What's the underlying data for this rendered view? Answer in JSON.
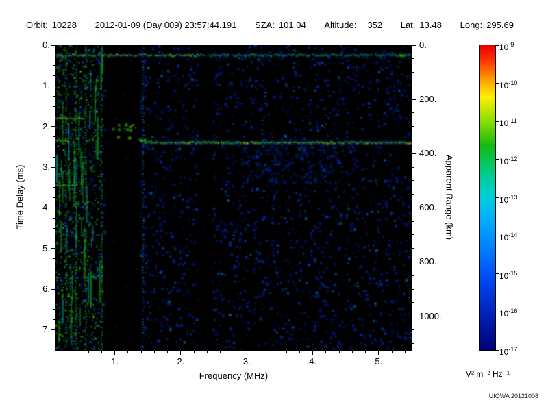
{
  "header": {
    "items": [
      {
        "label": "Orbit:",
        "value": "10228"
      },
      {
        "label": "",
        "value": "2012-01-09 (Day 009) 23:57:44.191"
      },
      {
        "label": "SZA:",
        "value": "101.04"
      },
      {
        "label": "Altitude:",
        "value": "352"
      },
      {
        "label": "Lat:",
        "value": "13.48"
      },
      {
        "label": "Long:",
        "value": "295.69"
      }
    ]
  },
  "credit": "UIOWA 20121008",
  "chart_data": {
    "type": "heatmap",
    "title": "",
    "xlabel": "Frequency (MHz)",
    "ylabel": "Time Delay (ms)",
    "y2label": "Apparent Range (km)",
    "x_range": [
      0.1,
      5.5
    ],
    "y_range": [
      0,
      7.5
    ],
    "y2_range": [
      0,
      1125
    ],
    "x_major_ticks": [
      1,
      2,
      3,
      4,
      5
    ],
    "x_tick_labels": [
      "1.",
      "2.",
      "3.",
      "4.",
      "5."
    ],
    "x_minor_step": 0.2,
    "y_major_ticks": [
      0,
      1,
      2,
      3,
      4,
      5,
      6,
      7
    ],
    "y_tick_labels": [
      "0.",
      "1.",
      "2.",
      "3.",
      "4.",
      "5.",
      "6.",
      "7."
    ],
    "y_minor_step": 0.25,
    "y2_major_ticks": [
      0,
      200,
      400,
      600,
      800,
      1000
    ],
    "y2_tick_labels": [
      "0.",
      "200.",
      "400.",
      "600.",
      "800.",
      "1000."
    ],
    "y2_minor_step": 50,
    "grid": false,
    "colorbar": {
      "unit_label": "V² m⁻² Hz⁻¹",
      "scale": "log",
      "min": 1e-17,
      "max": 1e-09,
      "tick_exponents": [
        -9,
        -10,
        -11,
        -12,
        -13,
        -14,
        -15,
        -16,
        -17
      ],
      "gradient_stops": [
        {
          "pos": 0.0,
          "color": "#e60000"
        },
        {
          "pos": 0.05,
          "color": "#ff3300"
        },
        {
          "pos": 0.11,
          "color": "#ff9900"
        },
        {
          "pos": 0.17,
          "color": "#ffee00"
        },
        {
          "pos": 0.25,
          "color": "#88dd00"
        },
        {
          "pos": 0.33,
          "color": "#11bb11"
        },
        {
          "pos": 0.42,
          "color": "#00cc88"
        },
        {
          "pos": 0.5,
          "color": "#00ccdd"
        },
        {
          "pos": 0.58,
          "color": "#00aaff"
        },
        {
          "pos": 0.68,
          "color": "#0077ff"
        },
        {
          "pos": 0.78,
          "color": "#0044ee"
        },
        {
          "pos": 0.88,
          "color": "#0022bb"
        },
        {
          "pos": 1.0,
          "color": "#000077"
        }
      ]
    },
    "features": [
      {
        "name": "surface-reflection-trace",
        "delay_ms": 0.25,
        "freq_range_mhz": [
          0.1,
          5.5
        ]
      },
      {
        "name": "ionosphere-echo-trace",
        "delay_ms": 2.4,
        "freq_range_mhz": [
          1.35,
          5.5
        ]
      },
      {
        "name": "plasma-oscillation-lines",
        "freqs_mhz": [
          0.26,
          0.41,
          0.56,
          0.8,
          1.43
        ]
      },
      {
        "name": "low-frequency-noise-band",
        "freq_range_mhz": [
          0.1,
          0.82
        ]
      },
      {
        "name": "blackout-bands",
        "freq_ranges_mhz": [
          [
            0.88,
            1.38
          ],
          [
            2.28,
            2.48
          ]
        ]
      },
      {
        "name": "resonance-cluster",
        "freq_range_mhz": [
          0.92,
          1.32
        ],
        "delay_range_ms": [
          1.95,
          2.4
        ]
      },
      {
        "name": "diffuse-haze",
        "freq_range_mhz": [
          2.9,
          4.4
        ],
        "delay_range_ms": [
          2.5,
          3.4
        ]
      },
      {
        "name": "low-frequency-bright-segments",
        "segments": [
          [
            1.8,
            0.1,
            0.52
          ],
          [
            3.45,
            0.1,
            0.42
          ],
          [
            2.35,
            0.1,
            0.3
          ]
        ]
      }
    ]
  }
}
